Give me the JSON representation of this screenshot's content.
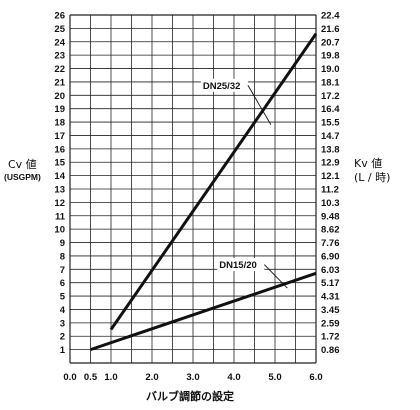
{
  "chart_data": {
    "type": "line",
    "xlabel": "バルブ調節の設定",
    "x_ticks": [
      "0.0",
      "0.5",
      "1.0",
      "2.0",
      "3.0",
      "4.0",
      "5.0",
      "6.0"
    ],
    "x_grid": [
      0,
      0.5,
      1,
      1.5,
      2,
      2.5,
      3,
      3.5,
      4,
      4.5,
      5,
      5.5,
      6
    ],
    "xlim": [
      0,
      6
    ],
    "ylim": [
      0,
      26
    ],
    "y_left": {
      "title": "Cv 値",
      "unit": "(USGPM)",
      "ticks": [
        "1",
        "2",
        "3",
        "4",
        "5",
        "6",
        "7",
        "8",
        "9",
        "10",
        "11",
        "12",
        "13",
        "14",
        "15",
        "16",
        "17",
        "18",
        "19",
        "20",
        "21",
        "22",
        "23",
        "24",
        "25",
        "26"
      ]
    },
    "y_right": {
      "title": "Kv 値",
      "unit": "(L / 時)",
      "ticks": [
        "0.86",
        "1.72",
        "2.59",
        "3.45",
        "4.31",
        "5.17",
        "6.03",
        "6.90",
        "7.76",
        "8.62",
        "9.48",
        "10.3",
        "11.2",
        "12.1",
        "12.9",
        "13.8",
        "14.7",
        "15.5",
        "16.4",
        "17.2",
        "18.1",
        "19.0",
        "19.8",
        "20.7",
        "21.6",
        "22.4"
      ]
    },
    "grid": true,
    "series": [
      {
        "name": "DN25/32",
        "x": [
          1.0,
          6.0
        ],
        "y": [
          2.5,
          24.6
        ],
        "color": "#111111",
        "label_at": [
          4.9,
          17.8
        ]
      },
      {
        "name": "DN15/20",
        "x": [
          0.5,
          6.0
        ],
        "y": [
          1.0,
          6.7
        ],
        "color": "#111111",
        "label_at": [
          5.3,
          5.6
        ]
      }
    ]
  }
}
